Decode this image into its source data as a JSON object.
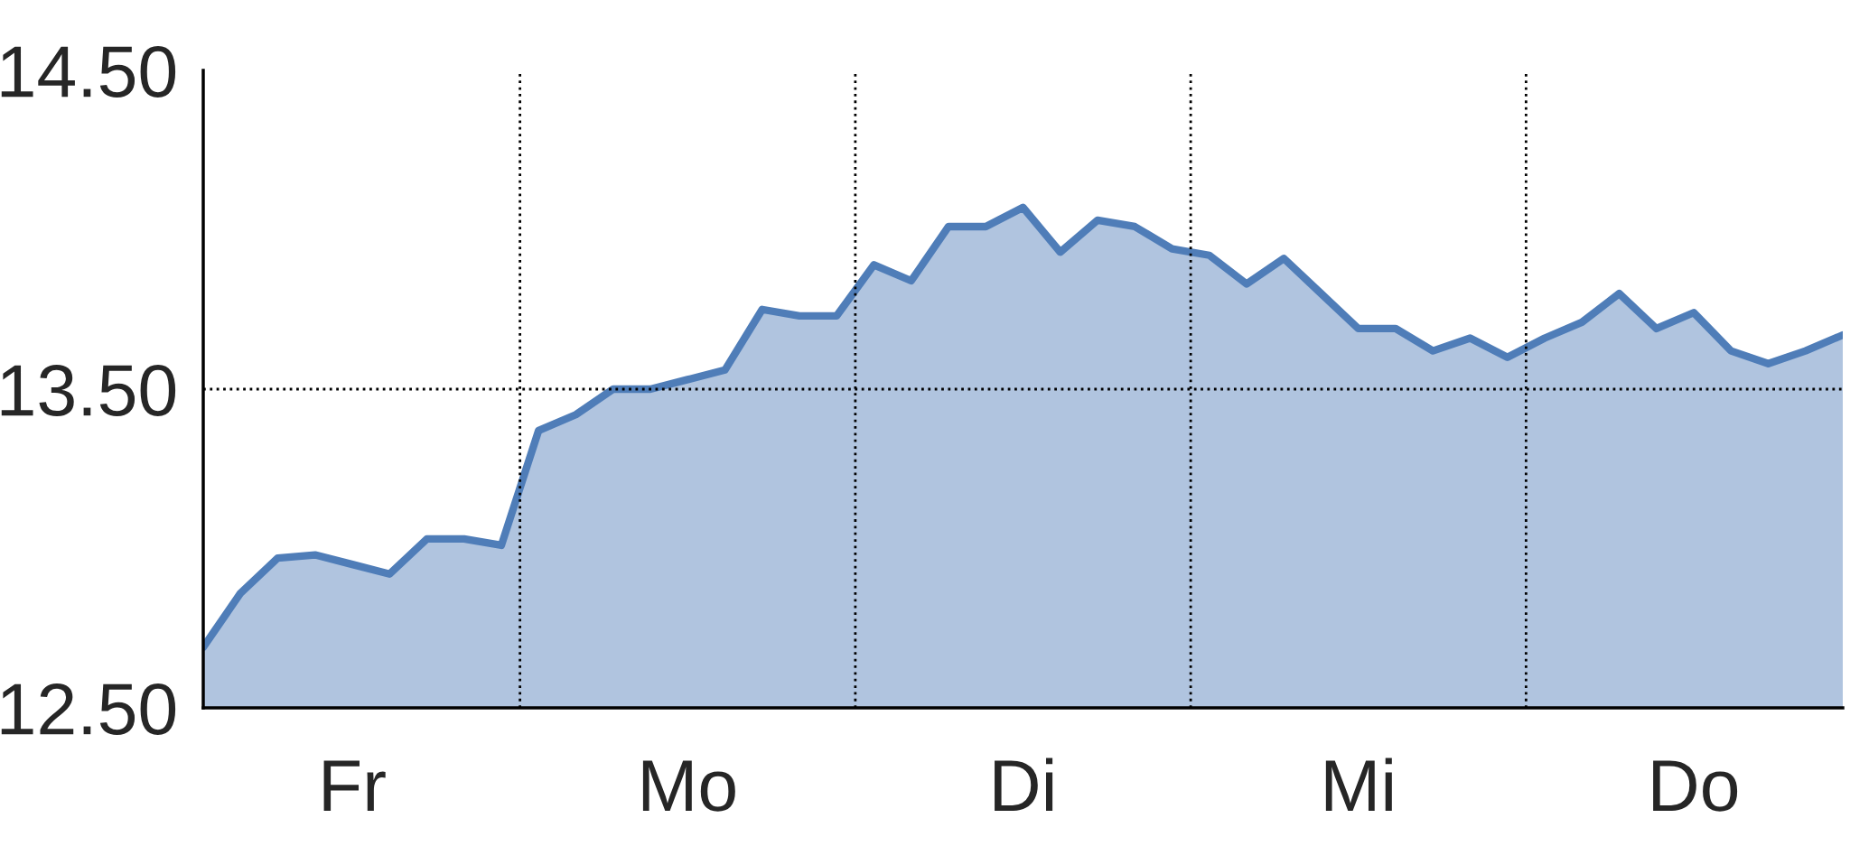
{
  "chart_data": {
    "type": "area",
    "categories": [
      null,
      null,
      null,
      null,
      "Fr",
      null,
      null,
      null,
      null,
      null,
      null,
      null,
      null,
      "Mo",
      null,
      null,
      null,
      null,
      null,
      null,
      null,
      null,
      "Di",
      null,
      null,
      null,
      null,
      null,
      null,
      null,
      null,
      "Mi",
      null,
      null,
      null,
      null,
      null,
      null,
      null,
      null,
      "Do",
      null,
      null,
      null,
      null
    ],
    "values": [
      12.69,
      12.86,
      12.97,
      12.98,
      12.95,
      12.92,
      13.03,
      13.03,
      13.01,
      13.37,
      13.42,
      13.5,
      13.5,
      13.53,
      13.56,
      13.75,
      13.73,
      13.73,
      13.89,
      13.84,
      14.01,
      14.01,
      14.07,
      13.93,
      14.03,
      14.01,
      13.94,
      13.92,
      13.83,
      13.91,
      13.8,
      13.69,
      13.69,
      13.62,
      13.66,
      13.6,
      13.66,
      13.71,
      13.8,
      13.69,
      13.74,
      13.62,
      13.58,
      13.62,
      13.67
    ],
    "color": "#4f7db8",
    "ylim": [
      12.5,
      14.5
    ],
    "yticks": [
      {
        "value": 12.5,
        "label": "12.50"
      },
      {
        "value": 13.5,
        "label": "13.50"
      },
      {
        "value": 14.5,
        "label": "14.50"
      }
    ],
    "ref_lines": [
      {
        "axis": "y",
        "value": 13.5,
        "line_style": "dotted"
      }
    ],
    "grid": false
  }
}
